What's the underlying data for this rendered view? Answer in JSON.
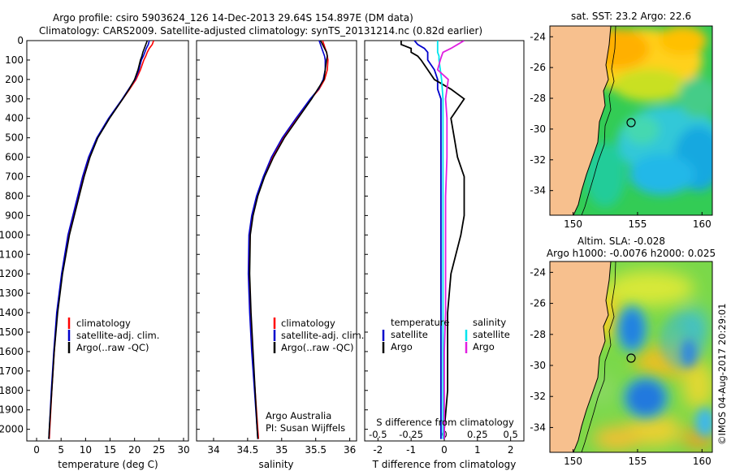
{
  "header": {
    "line1": "Argo profile: csiro 5903624_126 14-Dec-2013 29.64S 154.897E (DM data)",
    "line2": "Climatology: CARS2009. Satellite-adjusted climatology: synTS_20131214.nc (0.82d earlier)"
  },
  "colors": {
    "climatology": "#ff0000",
    "satellite": "#0000cc",
    "argo": "#000000",
    "sal_satellite": "#00e5ee",
    "sal_argo": "#e020e0",
    "land": "#f7c08e"
  },
  "chart_data": [
    {
      "type": "line",
      "panel": "temperature",
      "xlabel": "temperature (deg C)",
      "ylabel": "",
      "xlim": [
        -2,
        31
      ],
      "ylim": [
        2060,
        0
      ],
      "x_ticks": [
        "0",
        "5",
        "10",
        "15",
        "20",
        "25",
        "30"
      ],
      "y_ticks": [
        "0",
        "100",
        "200",
        "300",
        "400",
        "500",
        "600",
        "700",
        "800",
        "900",
        "1000",
        "1100",
        "1200",
        "1300",
        "1400",
        "1500",
        "1600",
        "1700",
        "1800",
        "1900",
        "2000"
      ],
      "legend": [
        "climatology",
        "satellite-adj. clim.",
        "Argo(..raw -QC)"
      ],
      "series": [
        {
          "name": "climatology",
          "depth": [
            0,
            20,
            40,
            60,
            80,
            100,
            150,
            200,
            250,
            300,
            400,
            500,
            600,
            700,
            800,
            900,
            1000,
            1200,
            1400,
            1600,
            1800,
            2000,
            2050
          ],
          "values": [
            23.9,
            23.6,
            23.0,
            22.6,
            22.3,
            21.9,
            21.2,
            20.3,
            19.0,
            17.6,
            14.8,
            12.4,
            10.7,
            9.5,
            8.5,
            7.5,
            6.5,
            5.2,
            4.2,
            3.6,
            3.1,
            2.7,
            2.6
          ]
        },
        {
          "name": "satellite-adj. clim.",
          "depth": [
            0,
            20,
            40,
            60,
            80,
            100,
            150,
            200,
            250,
            300,
            400,
            500,
            600,
            700,
            800,
            900,
            1000,
            1200,
            1400,
            1600,
            1800,
            2000,
            2050
          ],
          "values": [
            23.0,
            22.8,
            22.4,
            22.1,
            21.8,
            21.4,
            20.9,
            20.1,
            18.8,
            17.5,
            14.7,
            12.3,
            10.6,
            9.4,
            8.4,
            7.4,
            6.4,
            5.1,
            4.1,
            3.5,
            3.0,
            2.6,
            2.5
          ]
        },
        {
          "name": "Argo(..raw -QC)",
          "depth": [
            0,
            20,
            40,
            60,
            80,
            100,
            150,
            200,
            250,
            300,
            400,
            500,
            600,
            700,
            800,
            900,
            1000,
            1200,
            1400,
            1600,
            1800,
            2000,
            2050
          ],
          "values": [
            22.6,
            22.3,
            22.0,
            21.7,
            21.5,
            21.2,
            20.7,
            20.0,
            18.9,
            17.6,
            14.9,
            12.5,
            10.9,
            9.7,
            8.7,
            7.7,
            6.7,
            5.3,
            4.3,
            3.6,
            3.1,
            2.6,
            2.5
          ]
        }
      ]
    },
    {
      "type": "line",
      "panel": "salinity",
      "xlabel": "salinity",
      "xlim": [
        33.75,
        36.1
      ],
      "ylim": [
        2060,
        0
      ],
      "x_ticks": [
        "34",
        "34.5",
        "35",
        "35.5",
        "36"
      ],
      "legend": [
        "climatology",
        "satellite-adj. clim.",
        "Argo(..raw -QC)"
      ],
      "annotation": [
        "Argo Australia",
        "PI: Susan Wijffels"
      ],
      "series": [
        {
          "name": "climatology",
          "depth": [
            0,
            20,
            40,
            60,
            80,
            100,
            150,
            200,
            250,
            300,
            400,
            500,
            600,
            700,
            800,
            900,
            1000,
            1200,
            1400,
            1600,
            1800,
            2000,
            2050
          ],
          "values": [
            35.6,
            35.62,
            35.64,
            35.66,
            35.67,
            35.68,
            35.67,
            35.63,
            35.55,
            35.43,
            35.22,
            35.02,
            34.86,
            34.74,
            34.64,
            34.57,
            34.53,
            34.52,
            34.54,
            34.57,
            34.61,
            34.65,
            34.66
          ]
        },
        {
          "name": "satellite-adj. clim.",
          "depth": [
            0,
            20,
            40,
            60,
            80,
            100,
            150,
            200,
            250,
            300,
            400,
            500,
            600,
            700,
            800,
            900,
            1000,
            1200,
            1400,
            1600,
            1800,
            2000,
            2050
          ],
          "values": [
            35.55,
            35.57,
            35.59,
            35.61,
            35.63,
            35.64,
            35.64,
            35.61,
            35.54,
            35.42,
            35.21,
            35.01,
            34.85,
            34.73,
            34.63,
            34.56,
            34.52,
            34.51,
            34.53,
            34.56,
            34.6,
            34.64,
            34.65
          ]
        },
        {
          "name": "Argo(..raw -QC)",
          "depth": [
            0,
            20,
            40,
            60,
            80,
            100,
            150,
            200,
            250,
            300,
            400,
            500,
            600,
            700,
            800,
            900,
            1000,
            1200,
            1400,
            1600,
            1800,
            2000,
            2050
          ],
          "values": [
            35.57,
            35.6,
            35.63,
            35.66,
            35.67,
            35.66,
            35.64,
            35.62,
            35.53,
            35.44,
            35.24,
            35.04,
            34.88,
            34.75,
            34.65,
            34.58,
            34.54,
            34.53,
            34.55,
            34.58,
            34.61,
            34.64,
            34.65
          ]
        }
      ]
    },
    {
      "type": "line",
      "panel": "difference",
      "xlabel": "T difference from climatology",
      "xlabel2": "S difference from climatology",
      "xlim": [
        -2.4,
        2.4
      ],
      "ylim": [
        2060,
        0
      ],
      "x_ticks": [
        "-2",
        "-1",
        "0",
        "1",
        "2"
      ],
      "x2_ticks": [
        "-0.5",
        "-0.25",
        "0",
        "0.25",
        "0.5"
      ],
      "legend_temperature": [
        "temperature",
        "satellite",
        "Argo"
      ],
      "legend_salinity": [
        "salinity",
        "satellite",
        "Argo"
      ],
      "series": [
        {
          "name": "satellite",
          "variable": "T",
          "depth": [
            0,
            20,
            40,
            60,
            80,
            100,
            150,
            200,
            250,
            300,
            400,
            500,
            600,
            800,
            1000,
            1200,
            1400,
            1600,
            1800,
            2000,
            2050
          ],
          "values": [
            -0.9,
            -0.8,
            -0.6,
            -0.5,
            -0.5,
            -0.5,
            -0.3,
            -0.2,
            -0.2,
            -0.1,
            -0.1,
            -0.1,
            -0.1,
            -0.1,
            -0.1,
            -0.1,
            -0.1,
            -0.1,
            -0.1,
            -0.1,
            -0.1
          ]
        },
        {
          "name": "Argo",
          "variable": "T",
          "depth": [
            0,
            20,
            40,
            60,
            80,
            100,
            150,
            200,
            250,
            300,
            400,
            500,
            600,
            700,
            800,
            900,
            1000,
            1200,
            1400,
            1600,
            1800,
            2000,
            2050
          ],
          "values": [
            -1.3,
            -1.3,
            -1.0,
            -1.0,
            -0.8,
            -0.7,
            -0.5,
            -0.3,
            0.2,
            0.6,
            0.2,
            0.3,
            0.4,
            0.6,
            0.6,
            0.6,
            0.5,
            0.2,
            0.1,
            0.1,
            0.1,
            0.0,
            0.0
          ]
        },
        {
          "name": "satellite",
          "variable": "S",
          "depth": [
            0,
            20,
            40,
            60,
            80,
            100,
            150,
            200,
            300,
            400,
            500,
            600,
            800,
            1000,
            1200,
            1400,
            1600,
            1800,
            2000,
            2050
          ],
          "values": [
            -0.05,
            -0.05,
            -0.05,
            -0.05,
            -0.04,
            -0.04,
            -0.03,
            -0.02,
            -0.01,
            -0.01,
            -0.01,
            -0.01,
            -0.01,
            -0.01,
            -0.01,
            -0.01,
            -0.01,
            -0.01,
            -0.01,
            -0.01
          ]
        },
        {
          "name": "Argo",
          "variable": "S",
          "depth": [
            0,
            20,
            40,
            60,
            80,
            100,
            150,
            200,
            300,
            400,
            500,
            600,
            800,
            1000,
            1200,
            1400,
            1600,
            1800,
            2000,
            2050
          ],
          "values": [
            0.15,
            0.1,
            0.05,
            -0.01,
            -0.02,
            -0.03,
            -0.05,
            0.03,
            0.01,
            0.02,
            0.02,
            0.02,
            0.01,
            0.01,
            0.01,
            0.01,
            0.0,
            0.0,
            0.0,
            0.0
          ]
        }
      ]
    },
    {
      "type": "heatmap",
      "panel": "sst_map",
      "title": "sat. SST: 23.2  Argo: 22.6",
      "lon_ticks": [
        "150",
        "155",
        "160"
      ],
      "lat_ticks": [
        "-24",
        "-26",
        "-28",
        "-30",
        "-32",
        "-34"
      ],
      "marker": {
        "lon": 154.897,
        "lat": -29.64
      }
    },
    {
      "type": "heatmap",
      "panel": "sla_map",
      "title": "Altim. SLA: -0.028",
      "subtitle": "Argo h1000: -0.0076  h2000: 0.025",
      "lon_ticks": [
        "150",
        "155",
        "160"
      ],
      "lat_ticks": [
        "-24",
        "-26",
        "-28",
        "-30",
        "-32",
        "-34"
      ],
      "marker": {
        "lon": 154.897,
        "lat": -29.64
      }
    }
  ],
  "footer": {
    "credit": "©IMOS 04-Aug-2017 20:29:01"
  }
}
